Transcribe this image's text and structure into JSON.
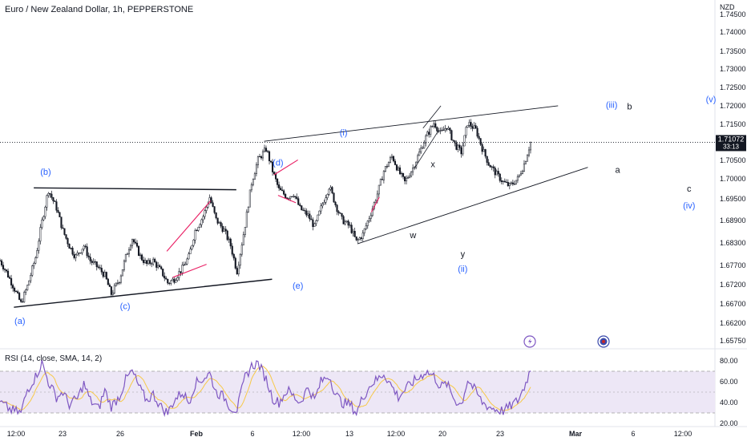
{
  "header": {
    "title": "Euro / New Zealand Dollar, 1h, PEPPERSTONE",
    "currency": "NZD"
  },
  "rsi": {
    "label": "RSI (14, close, SMA, 14, 2)"
  },
  "price_badge": {
    "price": "1.71072",
    "countdown": "33:13",
    "color": "#131722"
  },
  "colors": {
    "candles": "#131722",
    "wave_label": "#2962ff",
    "rsi_line": "#7e57c2",
    "rsi_ma": "#f7c948",
    "rsi_band": "#ede7f6",
    "trendline": "#131722",
    "highlight": "#e91e63"
  },
  "icons": [
    "lightning-icon",
    "target-icon"
  ],
  "chart_data": {
    "type": "candlestick",
    "title": "Euro / New Zealand Dollar, 1h, PEPPERSTONE",
    "y_axis": {
      "unit": "NZD",
      "ticks": [
        "1.74500",
        "1.74000",
        "1.73500",
        "1.73000",
        "1.72500",
        "1.72000",
        "1.71500",
        "1.71000",
        "1.70500",
        "1.70000",
        "1.69500",
        "1.68900",
        "1.68300",
        "1.67700",
        "1.67200",
        "1.66700",
        "1.66200",
        "1.65750"
      ]
    },
    "x_axis": {
      "ticks": [
        "12:00",
        "23",
        "26",
        "Feb",
        "6",
        "12:00",
        "13",
        "12:00",
        "20",
        "23",
        "Mar",
        "6",
        "12:00"
      ]
    },
    "last_price": 1.71072,
    "price_path": [
      {
        "x": 0,
        "y": 1.679
      },
      {
        "x": 0.3,
        "y": 1.676
      },
      {
        "x": 0.6,
        "y": 1.6725
      },
      {
        "x": 1.0,
        "y": 1.6675
      },
      {
        "x": 1.3,
        "y": 1.672
      },
      {
        "x": 1.7,
        "y": 1.68
      },
      {
        "x": 2.0,
        "y": 1.6895
      },
      {
        "x": 2.3,
        "y": 1.698
      },
      {
        "x": 2.7,
        "y": 1.693
      },
      {
        "x": 3.0,
        "y": 1.687
      },
      {
        "x": 3.3,
        "y": 1.683
      },
      {
        "x": 3.6,
        "y": 1.68
      },
      {
        "x": 4.0,
        "y": 1.683
      },
      {
        "x": 4.3,
        "y": 1.679
      },
      {
        "x": 4.7,
        "y": 1.677
      },
      {
        "x": 5.0,
        "y": 1.675
      },
      {
        "x": 5.3,
        "y": 1.67
      },
      {
        "x": 5.7,
        "y": 1.674
      },
      {
        "x": 6.0,
        "y": 1.68
      },
      {
        "x": 6.3,
        "y": 1.685
      },
      {
        "x": 6.7,
        "y": 1.68
      },
      {
        "x": 7.0,
        "y": 1.678
      },
      {
        "x": 7.3,
        "y": 1.679
      },
      {
        "x": 7.7,
        "y": 1.676
      },
      {
        "x": 8.0,
        "y": 1.673
      },
      {
        "x": 8.3,
        "y": 1.674
      },
      {
        "x": 8.7,
        "y": 1.677
      },
      {
        "x": 9.0,
        "y": 1.68
      },
      {
        "x": 9.3,
        "y": 1.687
      },
      {
        "x": 9.7,
        "y": 1.691
      },
      {
        "x": 10.0,
        "y": 1.696
      },
      {
        "x": 10.3,
        "y": 1.69
      },
      {
        "x": 10.7,
        "y": 1.687
      },
      {
        "x": 11.0,
        "y": 1.683
      },
      {
        "x": 11.3,
        "y": 1.676
      },
      {
        "x": 11.7,
        "y": 1.689
      },
      {
        "x": 12.0,
        "y": 1.7
      },
      {
        "x": 12.3,
        "y": 1.706
      },
      {
        "x": 12.7,
        "y": 1.709
      },
      {
        "x": 13.0,
        "y": 1.703
      },
      {
        "x": 13.3,
        "y": 1.698
      },
      {
        "x": 13.7,
        "y": 1.696
      },
      {
        "x": 14.0,
        "y": 1.697
      },
      {
        "x": 14.3,
        "y": 1.693
      },
      {
        "x": 14.7,
        "y": 1.691
      },
      {
        "x": 15.0,
        "y": 1.688
      },
      {
        "x": 15.3,
        "y": 1.693
      },
      {
        "x": 15.7,
        "y": 1.699
      },
      {
        "x": 16.0,
        "y": 1.694
      },
      {
        "x": 16.3,
        "y": 1.69
      },
      {
        "x": 16.7,
        "y": 1.688
      },
      {
        "x": 17.0,
        "y": 1.684
      },
      {
        "x": 17.3,
        "y": 1.686
      },
      {
        "x": 17.7,
        "y": 1.692
      },
      {
        "x": 18.0,
        "y": 1.697
      },
      {
        "x": 18.3,
        "y": 1.703
      },
      {
        "x": 18.7,
        "y": 1.707
      },
      {
        "x": 19.0,
        "y": 1.703
      },
      {
        "x": 19.3,
        "y": 1.7
      },
      {
        "x": 19.7,
        "y": 1.704
      },
      {
        "x": 20.0,
        "y": 1.708
      },
      {
        "x": 20.3,
        "y": 1.712
      },
      {
        "x": 20.7,
        "y": 1.716
      },
      {
        "x": 21.0,
        "y": 1.713
      },
      {
        "x": 21.3,
        "y": 1.715
      },
      {
        "x": 21.7,
        "y": 1.71
      },
      {
        "x": 22.0,
        "y": 1.708
      },
      {
        "x": 22.3,
        "y": 1.716
      },
      {
        "x": 22.7,
        "y": 1.714
      },
      {
        "x": 23.0,
        "y": 1.709
      },
      {
        "x": 23.3,
        "y": 1.705
      },
      {
        "x": 23.7,
        "y": 1.702
      },
      {
        "x": 24.0,
        "y": 1.7
      },
      {
        "x": 24.3,
        "y": 1.699
      },
      {
        "x": 24.7,
        "y": 1.701
      },
      {
        "x": 25.0,
        "y": 1.705
      },
      {
        "x": 25.3,
        "y": 1.7107
      }
    ],
    "price_x_range": [
      0,
      25.3
    ],
    "rsi_path": [
      {
        "x": 0,
        "y": 40
      },
      {
        "x": 0.5,
        "y": 33
      },
      {
        "x": 1.0,
        "y": 30
      },
      {
        "x": 1.3,
        "y": 52
      },
      {
        "x": 1.7,
        "y": 65
      },
      {
        "x": 2.0,
        "y": 78
      },
      {
        "x": 2.3,
        "y": 60
      },
      {
        "x": 2.7,
        "y": 45
      },
      {
        "x": 3.0,
        "y": 50
      },
      {
        "x": 3.3,
        "y": 38
      },
      {
        "x": 3.7,
        "y": 44
      },
      {
        "x": 4.0,
        "y": 58
      },
      {
        "x": 4.3,
        "y": 42
      },
      {
        "x": 4.7,
        "y": 34
      },
      {
        "x": 5.0,
        "y": 52
      },
      {
        "x": 5.3,
        "y": 36
      },
      {
        "x": 5.7,
        "y": 46
      },
      {
        "x": 6.0,
        "y": 62
      },
      {
        "x": 6.3,
        "y": 70
      },
      {
        "x": 6.7,
        "y": 52
      },
      {
        "x": 7.0,
        "y": 42
      },
      {
        "x": 7.3,
        "y": 48
      },
      {
        "x": 7.7,
        "y": 35
      },
      {
        "x": 8.0,
        "y": 30
      },
      {
        "x": 8.3,
        "y": 42
      },
      {
        "x": 8.7,
        "y": 50
      },
      {
        "x": 9.0,
        "y": 40
      },
      {
        "x": 9.3,
        "y": 58
      },
      {
        "x": 9.7,
        "y": 63
      },
      {
        "x": 10.0,
        "y": 68
      },
      {
        "x": 10.3,
        "y": 50
      },
      {
        "x": 10.7,
        "y": 45
      },
      {
        "x": 11.0,
        "y": 35
      },
      {
        "x": 11.3,
        "y": 33
      },
      {
        "x": 11.7,
        "y": 65
      },
      {
        "x": 12.0,
        "y": 75
      },
      {
        "x": 12.3,
        "y": 78
      },
      {
        "x": 12.7,
        "y": 62
      },
      {
        "x": 13.0,
        "y": 44
      },
      {
        "x": 13.3,
        "y": 40
      },
      {
        "x": 13.7,
        "y": 52
      },
      {
        "x": 14.0,
        "y": 46
      },
      {
        "x": 14.3,
        "y": 40
      },
      {
        "x": 14.7,
        "y": 55
      },
      {
        "x": 15.0,
        "y": 42
      },
      {
        "x": 15.3,
        "y": 60
      },
      {
        "x": 15.7,
        "y": 66
      },
      {
        "x": 16.0,
        "y": 48
      },
      {
        "x": 16.3,
        "y": 40
      },
      {
        "x": 16.7,
        "y": 38
      },
      {
        "x": 17.0,
        "y": 30
      },
      {
        "x": 17.3,
        "y": 45
      },
      {
        "x": 17.7,
        "y": 58
      },
      {
        "x": 18.0,
        "y": 62
      },
      {
        "x": 18.3,
        "y": 68
      },
      {
        "x": 18.7,
        "y": 55
      },
      {
        "x": 19.0,
        "y": 45
      },
      {
        "x": 19.3,
        "y": 52
      },
      {
        "x": 19.7,
        "y": 60
      },
      {
        "x": 20.0,
        "y": 64
      },
      {
        "x": 20.3,
        "y": 70
      },
      {
        "x": 20.7,
        "y": 65
      },
      {
        "x": 21.0,
        "y": 55
      },
      {
        "x": 21.3,
        "y": 58
      },
      {
        "x": 21.7,
        "y": 42
      },
      {
        "x": 22.0,
        "y": 38
      },
      {
        "x": 22.3,
        "y": 62
      },
      {
        "x": 22.7,
        "y": 50
      },
      {
        "x": 23.0,
        "y": 40
      },
      {
        "x": 23.3,
        "y": 36
      },
      {
        "x": 23.7,
        "y": 33
      },
      {
        "x": 24.0,
        "y": 32
      },
      {
        "x": 24.3,
        "y": 36
      },
      {
        "x": 24.7,
        "y": 42
      },
      {
        "x": 25.0,
        "y": 55
      },
      {
        "x": 25.3,
        "y": 72
      }
    ],
    "rsi_axis": {
      "ticks": [
        "80.00",
        "60.00",
        "40.00",
        "20.00"
      ],
      "upper_band": 70,
      "lower_band": 30,
      "mid": 50
    },
    "wave_labels": [
      {
        "text": "(a)",
        "x": 1.0,
        "y": 1.662,
        "color": "#2962ff"
      },
      {
        "text": "(b)",
        "x": 2.3,
        "y": 1.702,
        "color": "#2962ff"
      },
      {
        "text": "(c)",
        "x": 6.3,
        "y": 1.666,
        "color": "#2962ff"
      },
      {
        "text": "(d)",
        "x": 14.0,
        "y": 1.7045,
        "color": "#2962ff"
      },
      {
        "text": "(e)",
        "x": 15.0,
        "y": 1.6715,
        "color": "#2962ff"
      },
      {
        "text": "(i)",
        "x": 17.3,
        "y": 1.7125,
        "color": "#2962ff"
      },
      {
        "text": "w",
        "x": 20.8,
        "y": 1.685,
        "color": "#131722"
      },
      {
        "text": "x",
        "x": 21.8,
        "y": 1.704,
        "color": "#131722"
      },
      {
        "text": "y",
        "x": 23.3,
        "y": 1.68,
        "color": "#131722"
      },
      {
        "text": "(ii)",
        "x": 23.3,
        "y": 1.676,
        "color": "#2962ff"
      },
      {
        "text": "(iii)",
        "x": 30.8,
        "y": 1.72,
        "color": "#2962ff"
      },
      {
        "text": "b",
        "x": 31.7,
        "y": 1.7195,
        "color": "#131722"
      },
      {
        "text": "a",
        "x": 31.1,
        "y": 1.7025,
        "color": "#131722"
      },
      {
        "text": "c",
        "x": 34.7,
        "y": 1.6975,
        "color": "#131722"
      },
      {
        "text": "(iv)",
        "x": 34.7,
        "y": 1.693,
        "color": "#2962ff"
      },
      {
        "text": "(v)",
        "x": 35.8,
        "y": 1.7215,
        "color": "#2962ff"
      }
    ],
    "grid": false,
    "legend": "none"
  }
}
